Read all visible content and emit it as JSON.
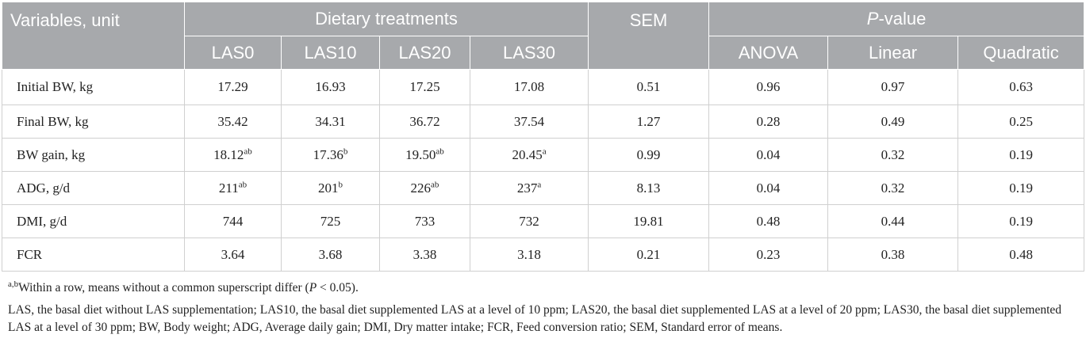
{
  "header": {
    "variables": "Variables, unit",
    "dietary": "Dietary treatments",
    "sem": "SEM",
    "p_prefix": "P",
    "p_suffix": "-value",
    "treatments": [
      "LAS0",
      "LAS10",
      "LAS20",
      "LAS30"
    ],
    "pvals": [
      "ANOVA",
      "Linear",
      "Quadratic"
    ]
  },
  "rows": [
    {
      "var": "Initial BW, kg",
      "v": [
        [
          "17.29",
          ""
        ],
        [
          "16.93",
          ""
        ],
        [
          "17.25",
          ""
        ],
        [
          "17.08",
          ""
        ]
      ],
      "sem": "0.51",
      "p": [
        "0.96",
        "0.97",
        "0.63"
      ]
    },
    {
      "var": "Final BW, kg",
      "v": [
        [
          "35.42",
          ""
        ],
        [
          "34.31",
          ""
        ],
        [
          "36.72",
          ""
        ],
        [
          "37.54",
          ""
        ]
      ],
      "sem": "1.27",
      "p": [
        "0.28",
        "0.49",
        "0.25"
      ]
    },
    {
      "var": "BW gain, kg",
      "v": [
        [
          "18.12",
          "ab"
        ],
        [
          "17.36",
          "b"
        ],
        [
          "19.50",
          "ab"
        ],
        [
          "20.45",
          "a"
        ]
      ],
      "sem": "0.99",
      "p": [
        "0.04",
        "0.32",
        "0.19"
      ]
    },
    {
      "var": "ADG, g/d",
      "v": [
        [
          "211",
          "ab"
        ],
        [
          "201",
          "b"
        ],
        [
          "226",
          "ab"
        ],
        [
          "237",
          "a"
        ]
      ],
      "sem": "8.13",
      "p": [
        "0.04",
        "0.32",
        "0.19"
      ]
    },
    {
      "var": "DMI, g/d",
      "v": [
        [
          "744",
          ""
        ],
        [
          "725",
          ""
        ],
        [
          "733",
          ""
        ],
        [
          "732",
          ""
        ]
      ],
      "sem": "19.81",
      "p": [
        "0.48",
        "0.44",
        "0.19"
      ]
    },
    {
      "var": "FCR",
      "v": [
        [
          "3.64",
          ""
        ],
        [
          "3.68",
          ""
        ],
        [
          "3.38",
          ""
        ],
        [
          "3.18",
          ""
        ]
      ],
      "sem": "0.21",
      "p": [
        "0.23",
        "0.38",
        "0.48"
      ]
    }
  ],
  "footnotes": {
    "sup": "a,b",
    "note1_pre": "Within a row, means without a common superscript differ (",
    "note1_p": "P",
    "note1_post": " < 0.05).",
    "note2": "LAS, the basal diet without LAS supplementation; LAS10, the basal diet supplemented LAS at a level of 10 ppm; LAS20, the basal diet supplemented LAS at a level of 20 ppm; LAS30, the basal diet supplemented LAS at a level of 30 ppm; BW, Body weight; ADG, Average daily gain; DMI, Dry matter intake; FCR, Feed conversion ratio; SEM, Standard error of means."
  }
}
